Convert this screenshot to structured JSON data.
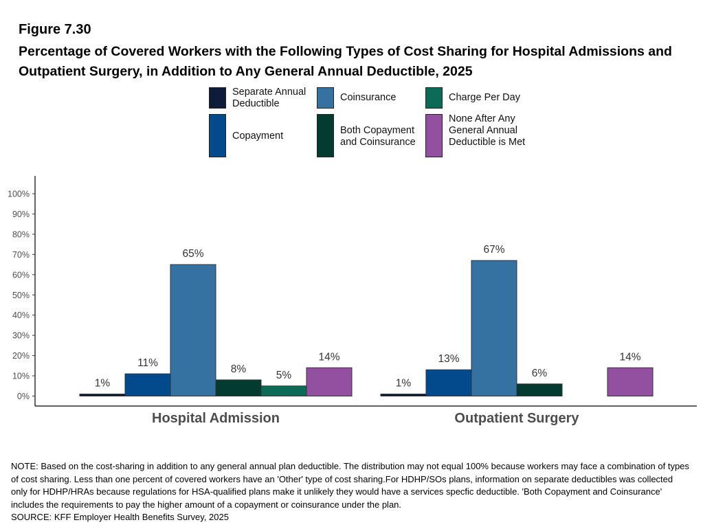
{
  "figure": {
    "label": "Figure 7.30",
    "title": "Percentage of Covered Workers with the Following Types of Cost Sharing for Hospital Admissions and Outpatient Surgery, in Addition to Any General Annual Deductible, 2025"
  },
  "notes": {
    "note": "NOTE: Based on the cost-sharing in addition to any general annual plan deductible. The distribution may not equal 100% because workers may face a combination of types of cost sharing. Less than one percent of covered workers have an 'Other' type of cost sharing.For HDHP/SOs plans, information on separate deductibles was collected only for HDHP/HRAs because regulations for HSA-qualified plans make it unlikely they would have a services specfic deductible. 'Both Copayment and Coinsurance' includes the requirements to pay the higher amount of a copayment or coinsurance under the plan.",
    "source": "SOURCE: KFF Employer Health Benefits Survey, 2025"
  },
  "chart_data": {
    "type": "bar",
    "categories": [
      "Hospital Admission",
      "Outpatient Surgery"
    ],
    "ylim": [
      0,
      100
    ],
    "yticks": [
      "0%",
      "10%",
      "20%",
      "30%",
      "40%",
      "50%",
      "60%",
      "70%",
      "80%",
      "90%",
      "100%"
    ],
    "grid": false,
    "legend_position": "top",
    "series": [
      {
        "name": "Separate Annual Deductible",
        "color": "#0d1c38",
        "values": [
          1,
          1
        ],
        "labels": [
          "1%",
          "1%"
        ]
      },
      {
        "name": "Copayment",
        "color": "#024a8b",
        "values": [
          11,
          13
        ],
        "labels": [
          "11%",
          "13%"
        ]
      },
      {
        "name": "Coinsurance",
        "color": "#3571a1",
        "values": [
          65,
          67
        ],
        "labels": [
          "65%",
          "67%"
        ]
      },
      {
        "name": "Both Copayment and Coinsurance",
        "color": "#043b30",
        "values": [
          8,
          6
        ],
        "labels": [
          "8%",
          "6%"
        ]
      },
      {
        "name": "Charge Per Day",
        "color": "#0b6b57",
        "values": [
          5,
          0
        ],
        "labels": [
          "5%",
          ""
        ]
      },
      {
        "name": "None After Any General Annual Deductible is Met",
        "color": "#9450a0",
        "values": [
          14,
          14
        ],
        "labels": [
          "14%",
          "14%"
        ]
      }
    ]
  }
}
